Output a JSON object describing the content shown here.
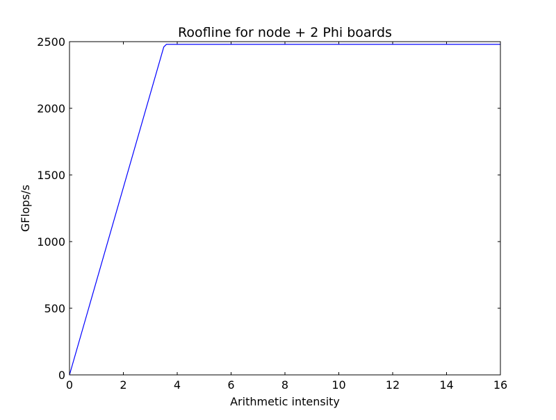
{
  "chart_data": {
    "type": "line",
    "title": "Roofline for node + 2 Phi boards",
    "xlabel": "Arithmetic intensity",
    "ylabel": "GFlops/s",
    "xlim": [
      0,
      16
    ],
    "ylim": [
      0,
      2500
    ],
    "xticks": [
      0,
      2,
      4,
      6,
      8,
      10,
      12,
      14,
      16
    ],
    "yticks": [
      0,
      500,
      1000,
      1500,
      2000,
      2500
    ],
    "grid": false,
    "series": [
      {
        "color": "#0000ff",
        "x": [
          0,
          3.5,
          3.6,
          16
        ],
        "y": [
          0,
          2460,
          2480,
          2480
        ]
      }
    ]
  }
}
